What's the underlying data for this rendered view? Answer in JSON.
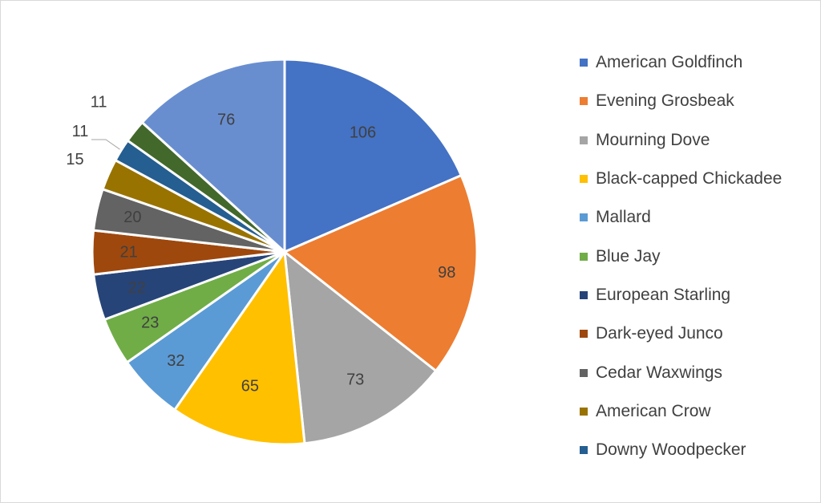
{
  "chart_data": {
    "type": "pie",
    "title": "",
    "legend_position": "right",
    "slices": [
      {
        "name": "American Goldfinch",
        "value": 106,
        "color": "#4472C4"
      },
      {
        "name": "Evening Grosbeak",
        "value": 98,
        "color": "#ED7D31"
      },
      {
        "name": "Mourning Dove",
        "value": 73,
        "color": "#A5A5A5"
      },
      {
        "name": "Black-capped Chickadee",
        "value": 65,
        "color": "#FFC000"
      },
      {
        "name": "Mallard",
        "value": 32,
        "color": "#5B9BD5"
      },
      {
        "name": "Blue Jay",
        "value": 23,
        "color": "#70AD47"
      },
      {
        "name": "European Starling",
        "value": 22,
        "color": "#264478"
      },
      {
        "name": "Dark-eyed Junco",
        "value": 21,
        "color": "#9E480E"
      },
      {
        "name": "Cedar Waxwings",
        "value": 20,
        "color": "#636363"
      },
      {
        "name": "American Crow",
        "value": 15,
        "color": "#997300"
      },
      {
        "name": "Downy Woodpecker",
        "value": 11,
        "color": "#255E91"
      },
      {
        "name": "",
        "value": 11,
        "color": "#43682B"
      },
      {
        "name": "",
        "value": 76,
        "color": "#698ED0"
      }
    ],
    "legend_shows": 11
  }
}
